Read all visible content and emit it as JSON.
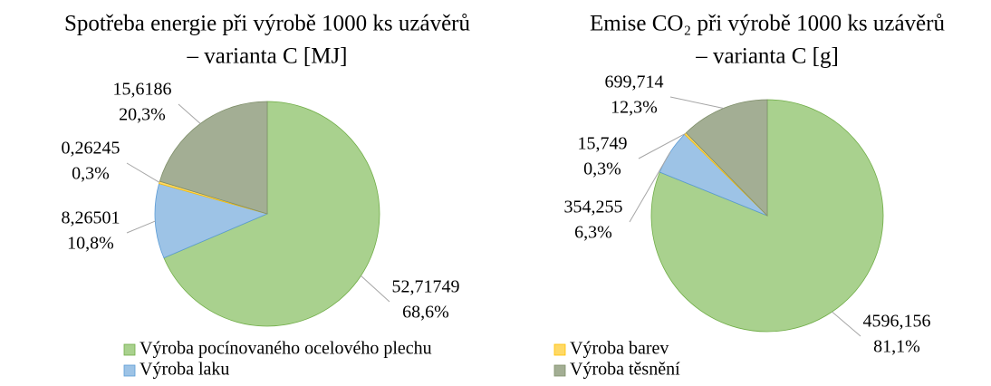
{
  "chart_data": [
    {
      "type": "pie",
      "title": [
        "Spotřeba energie při výrobě 1000 ks uzávěrů",
        "– varianta C [MJ]"
      ],
      "categories": [
        "Výroba pocínovaného ocelového plechu",
        "Výroba laku",
        "Výroba barev",
        "Výroba těsnění"
      ],
      "values": [
        52.71749,
        8.26501,
        0.26245,
        15.6186
      ],
      "value_labels": [
        "52,71749",
        "8,26501",
        "0,26245",
        "15,6186"
      ],
      "percents": [
        68.6,
        10.8,
        0.3,
        20.3
      ],
      "percent_labels": [
        "68,6%",
        "10,8%",
        "0,3%",
        "20,3%"
      ],
      "colors": [
        "#a9d18e",
        "#9dc3e6",
        "#ffd966",
        "#a3ae94"
      ],
      "legend": "bottom"
    },
    {
      "type": "pie",
      "title": [
        "Emise CO₂ při výrobě 1000 ks uzávěrů",
        "– varianta C [g]"
      ],
      "categories": [
        "Výroba pocínovaného ocelového plechu",
        "Výroba laku",
        "Výroba barev",
        "Výroba těsnění"
      ],
      "values": [
        4596.156,
        354.255,
        15.749,
        699.714
      ],
      "value_labels": [
        "4596,156",
        "354,255",
        "15,749",
        "699,714"
      ],
      "percents": [
        81.1,
        6.3,
        0.3,
        12.3
      ],
      "percent_labels": [
        "81,1%",
        "6,3%",
        "0,3%",
        "12,3%"
      ],
      "colors": [
        "#a9d18e",
        "#9dc3e6",
        "#ffd966",
        "#a3ae94"
      ]
    }
  ]
}
